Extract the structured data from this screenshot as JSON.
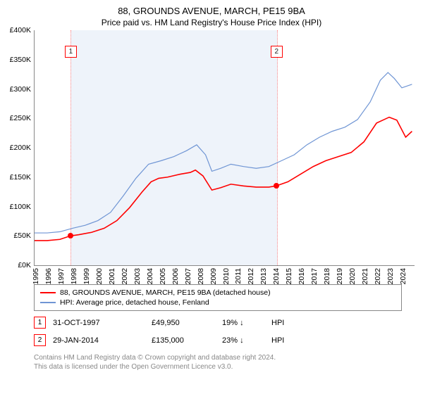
{
  "title": "88, GROUNDS AVENUE, MARCH, PE15 9BA",
  "subtitle": "Price paid vs. HM Land Registry's House Price Index (HPI)",
  "chart": {
    "type": "line",
    "background_color": "#ffffff",
    "highlight_color": "#eef3fa",
    "ylim": [
      0,
      400000
    ],
    "ytick_step": 50000,
    "yticks": [
      "£0K",
      "£50K",
      "£100K",
      "£150K",
      "£200K",
      "£250K",
      "£300K",
      "£350K",
      "£400K"
    ],
    "x_start_year": 1995,
    "x_end_year": 2025,
    "xticks": [
      "1995",
      "1996",
      "1997",
      "1998",
      "1999",
      "2000",
      "2001",
      "2002",
      "2003",
      "2004",
      "2005",
      "2006",
      "2007",
      "2008",
      "2009",
      "2010",
      "2011",
      "2012",
      "2013",
      "2014",
      "2015",
      "2016",
      "2017",
      "2018",
      "2019",
      "2020",
      "2021",
      "2022",
      "2023",
      "2024"
    ],
    "highlight_from_year": 1997.83,
    "highlight_to_year": 2014.08,
    "series": [
      {
        "name": "88, GROUNDS AVENUE, MARCH, PE15 9BA (detached house)",
        "color": "#ff0000",
        "width": 1.6,
        "points": [
          [
            1995.0,
            42000
          ],
          [
            1996.0,
            42000
          ],
          [
            1997.0,
            44000
          ],
          [
            1997.83,
            49950
          ],
          [
            1998.5,
            52000
          ],
          [
            1999.5,
            56000
          ],
          [
            2000.5,
            63000
          ],
          [
            2001.5,
            76000
          ],
          [
            2002.5,
            98000
          ],
          [
            2003.5,
            125000
          ],
          [
            2004.2,
            142000
          ],
          [
            2004.8,
            148000
          ],
          [
            2005.5,
            150000
          ],
          [
            2006.5,
            155000
          ],
          [
            2007.3,
            158000
          ],
          [
            2007.7,
            162000
          ],
          [
            2008.3,
            152000
          ],
          [
            2009.0,
            128000
          ],
          [
            2009.7,
            132000
          ],
          [
            2010.5,
            138000
          ],
          [
            2011.5,
            135000
          ],
          [
            2012.5,
            133000
          ],
          [
            2013.5,
            133000
          ],
          [
            2014.08,
            135000
          ],
          [
            2015.0,
            142000
          ],
          [
            2016.0,
            155000
          ],
          [
            2017.0,
            168000
          ],
          [
            2018.0,
            178000
          ],
          [
            2019.0,
            185000
          ],
          [
            2020.0,
            192000
          ],
          [
            2021.0,
            210000
          ],
          [
            2022.0,
            242000
          ],
          [
            2023.0,
            252000
          ],
          [
            2023.6,
            247000
          ],
          [
            2024.3,
            218000
          ],
          [
            2024.8,
            228000
          ]
        ]
      },
      {
        "name": "HPI: Average price, detached house, Fenland",
        "color": "#6f95d4",
        "width": 1.2,
        "points": [
          [
            1995.0,
            55000
          ],
          [
            1996.0,
            55000
          ],
          [
            1997.0,
            57000
          ],
          [
            1998.0,
            63000
          ],
          [
            1999.0,
            68000
          ],
          [
            2000.0,
            76000
          ],
          [
            2001.0,
            90000
          ],
          [
            2002.0,
            118000
          ],
          [
            2003.0,
            148000
          ],
          [
            2004.0,
            172000
          ],
          [
            2005.0,
            178000
          ],
          [
            2006.0,
            185000
          ],
          [
            2007.0,
            195000
          ],
          [
            2007.8,
            205000
          ],
          [
            2008.5,
            188000
          ],
          [
            2009.0,
            160000
          ],
          [
            2009.7,
            165000
          ],
          [
            2010.5,
            172000
          ],
          [
            2011.5,
            168000
          ],
          [
            2012.5,
            165000
          ],
          [
            2013.5,
            168000
          ],
          [
            2014.5,
            178000
          ],
          [
            2015.5,
            188000
          ],
          [
            2016.5,
            205000
          ],
          [
            2017.5,
            218000
          ],
          [
            2018.5,
            228000
          ],
          [
            2019.5,
            235000
          ],
          [
            2020.5,
            248000
          ],
          [
            2021.5,
            278000
          ],
          [
            2022.3,
            315000
          ],
          [
            2022.9,
            328000
          ],
          [
            2023.4,
            318000
          ],
          [
            2024.0,
            302000
          ],
          [
            2024.8,
            308000
          ]
        ]
      }
    ],
    "sale_points": [
      {
        "marker": "1",
        "year": 1997.83,
        "price": 49950
      },
      {
        "marker": "2",
        "year": 2014.08,
        "price": 135000
      }
    ],
    "axis_label_fontsize": 10.5
  },
  "legend": {
    "items": [
      {
        "color": "#ff0000",
        "label": "88, GROUNDS AVENUE, MARCH, PE15 9BA (detached house)"
      },
      {
        "color": "#6f95d4",
        "label": "HPI: Average price, detached house, Fenland"
      }
    ]
  },
  "sales": [
    {
      "marker": "1",
      "date": "31-OCT-1997",
      "price": "£49,950",
      "pct": "19%",
      "arrow": "↓",
      "suffix": "HPI"
    },
    {
      "marker": "2",
      "date": "29-JAN-2014",
      "price": "£135,000",
      "pct": "23%",
      "arrow": "↓",
      "suffix": "HPI"
    }
  ],
  "footer_line1": "Contains HM Land Registry data © Crown copyright and database right 2024.",
  "footer_line2": "This data is licensed under the Open Government Licence v3.0."
}
